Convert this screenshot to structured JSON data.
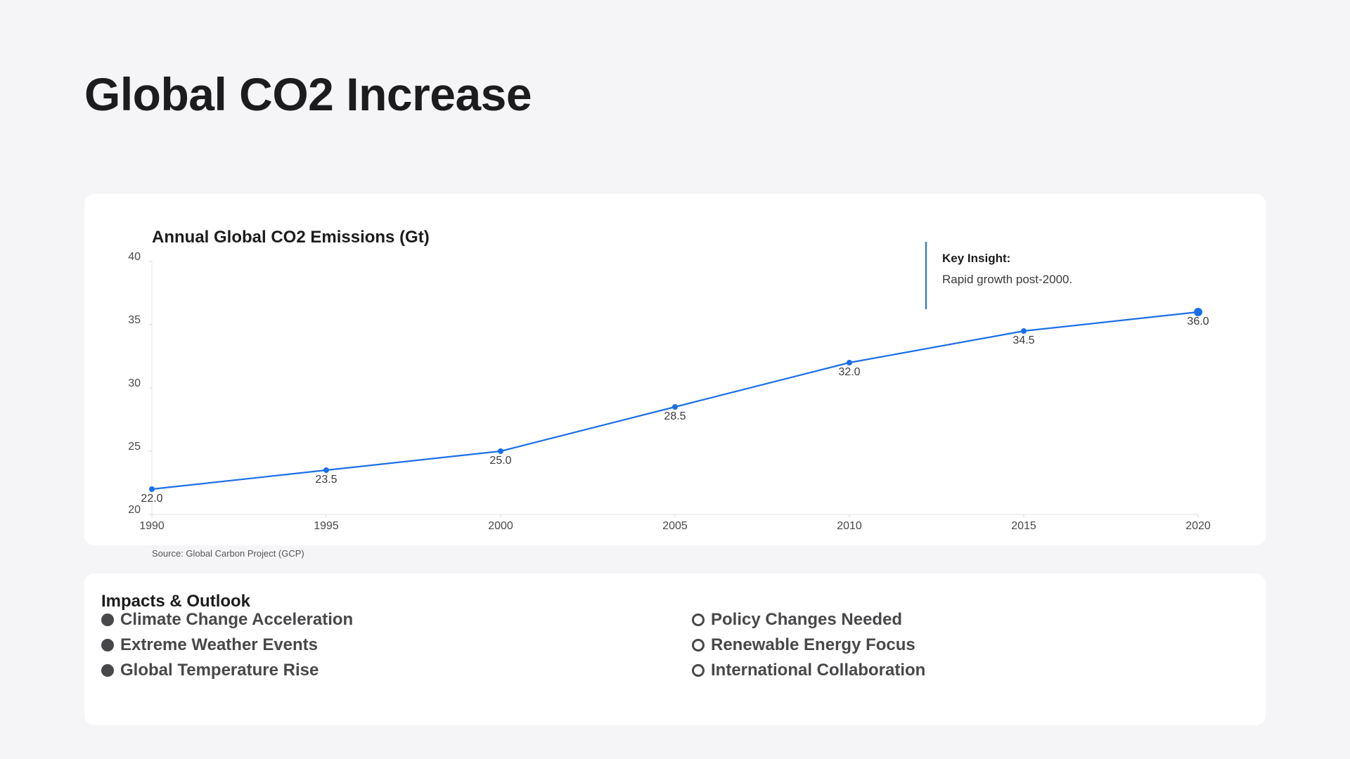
{
  "page": {
    "title": "Global CO2 Increase"
  },
  "chart_data": {
    "type": "line",
    "title": "Annual Global CO2 Emissions (Gt)",
    "x": [
      1990,
      1995,
      2000,
      2005,
      2010,
      2015,
      2020
    ],
    "series": [
      {
        "values": [
          22.0,
          23.5,
          25.0,
          28.5,
          32.0,
          34.5,
          36.0
        ]
      }
    ],
    "data_labels": [
      "22.0",
      "23.5",
      "25.0",
      "28.5",
      "32.0",
      "34.5",
      "36.0"
    ],
    "x_ticks": [
      "1990",
      "1995",
      "2000",
      "2005",
      "2010",
      "2015",
      "2020"
    ],
    "y_ticks": [
      "20",
      "25",
      "30",
      "35",
      "40"
    ],
    "ylim": [
      20,
      40
    ],
    "xlim": [
      1990,
      2020
    ],
    "grid": false,
    "color": "#1a6fe8"
  },
  "insight": {
    "title": "Key Insight:",
    "text": "Rapid growth post-2000."
  },
  "source": "Source: Global Carbon Project (GCP)",
  "impacts": {
    "title": "Impacts & Outlook",
    "left_items": [
      "Climate Change Acceleration",
      "Extreme Weather Events",
      "Global Temperature Rise"
    ],
    "right_items": [
      "Policy Changes Needed",
      "Renewable Energy Focus",
      "International Collaboration"
    ]
  }
}
